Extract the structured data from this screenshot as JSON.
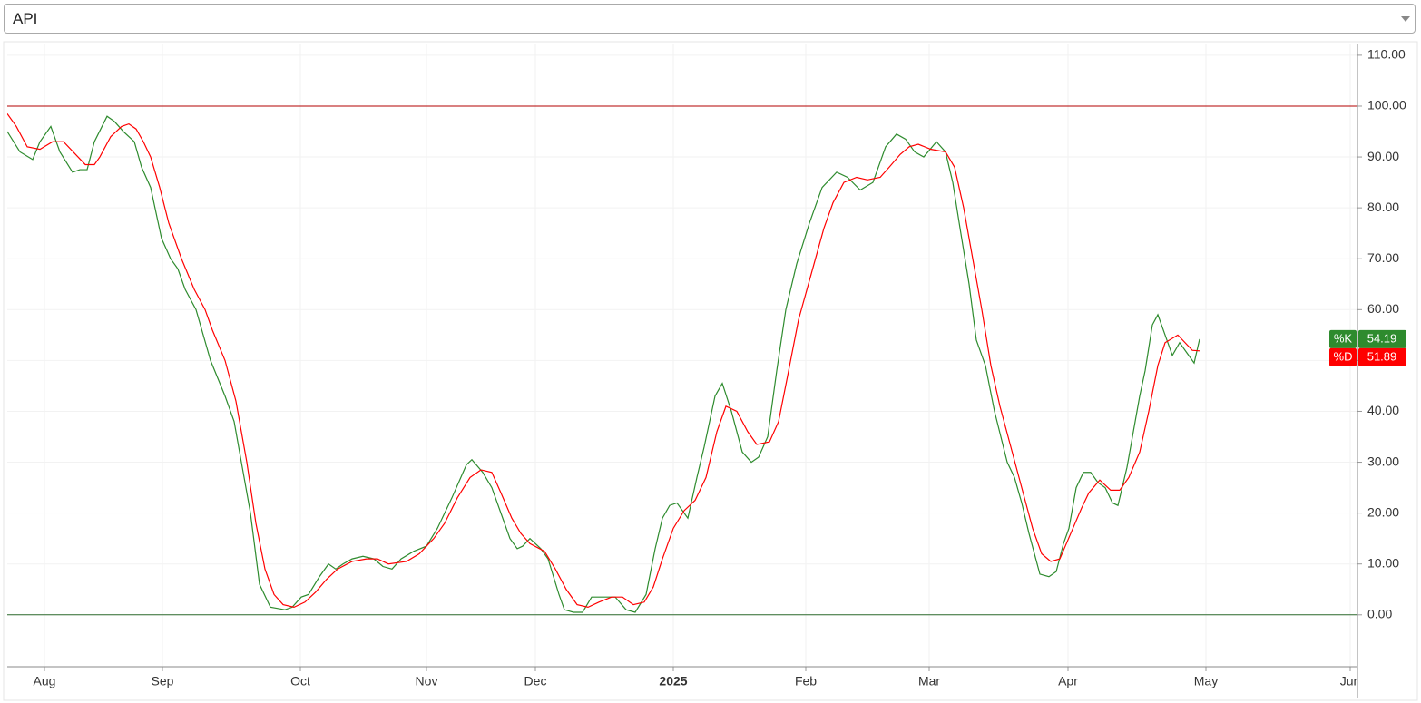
{
  "select": {
    "value": "API"
  },
  "chart_data": {
    "type": "line",
    "xlim": [
      0,
      744
    ],
    "ylim": [
      -10.2,
      112.3
    ],
    "xticks": [
      {
        "value": 20.5,
        "label": "Aug"
      },
      {
        "value": 85.5,
        "label": "Sep"
      },
      {
        "value": 161.5,
        "label": "Oct"
      },
      {
        "value": 231,
        "label": "Nov"
      },
      {
        "value": 291,
        "label": "Dec"
      },
      {
        "value": 367,
        "label": "2025",
        "bold": true
      },
      {
        "value": 440,
        "label": "Feb"
      },
      {
        "value": 508,
        "label": "Mar"
      },
      {
        "value": 584.5,
        "label": "Apr"
      },
      {
        "value": 660.5,
        "label": "May"
      },
      {
        "value": 740,
        "label": "Jun"
      }
    ],
    "yticks": [
      {
        "value": 0,
        "label": "0.00"
      },
      {
        "value": 10,
        "label": "10.00"
      },
      {
        "value": 20,
        "label": "20.00"
      },
      {
        "value": 30,
        "label": "30.00"
      },
      {
        "value": 40,
        "label": "40.00"
      },
      {
        "value": 50,
        "label": "50.00"
      },
      {
        "value": 60,
        "label": "60.00"
      },
      {
        "value": 70,
        "label": "70.00"
      },
      {
        "value": 80,
        "label": "80.00"
      },
      {
        "value": 90,
        "label": "90.00"
      },
      {
        "value": 100,
        "label": "100.00"
      },
      {
        "value": 110,
        "label": "110.00"
      }
    ],
    "grid": true,
    "levels": [
      {
        "value": 100,
        "color": "#b30000"
      },
      {
        "value": 0,
        "color": "#2e6b2e"
      }
    ],
    "series": [
      {
        "name": "%K",
        "color": "#2e8b2e",
        "x": [
          0,
          7,
          14,
          18,
          24,
          29,
          36,
          40,
          44,
          48,
          55,
          59,
          64,
          70,
          74,
          79,
          85,
          90,
          94,
          98,
          104,
          112,
          120,
          125,
          129,
          134,
          139,
          145,
          153,
          157,
          162,
          166,
          172,
          177,
          181,
          185,
          190,
          196,
          202,
          207,
          212,
          217,
          224,
          231,
          237,
          245,
          253,
          256,
          262,
          267,
          272,
          277,
          281,
          284,
          288,
          294,
          298,
          304,
          307,
          312,
          317,
          322,
          328,
          335,
          341,
          346,
          352,
          357,
          361,
          365,
          369,
          373,
          375,
          380,
          384,
          390,
          394,
          399,
          405,
          410,
          414,
          419,
          424,
          429,
          435,
          442,
          449,
          457,
          463,
          470,
          477,
          484,
          490,
          495,
          500,
          505,
          512,
          517,
          521,
          525,
          530,
          534,
          539,
          544,
          551,
          555,
          559,
          563,
          569,
          574,
          578,
          582,
          585,
          589,
          593,
          597,
          601,
          605,
          609,
          612,
          617,
          624,
          627,
          631,
          634,
          638,
          642,
          646,
          650,
          654,
          657
        ],
        "values": [
          95,
          91,
          89.5,
          93,
          96,
          91,
          87,
          87.5,
          87.5,
          93,
          98,
          97,
          95,
          93,
          88,
          84,
          74,
          70,
          68,
          64,
          60,
          50,
          43,
          38,
          30,
          20,
          6,
          1.5,
          1,
          1.5,
          3.5,
          4,
          7.5,
          10,
          9,
          10,
          11,
          11.5,
          11,
          9.5,
          9,
          11,
          12.5,
          13.5,
          17,
          23,
          29.5,
          30.5,
          28,
          25,
          20,
          15,
          13,
          13.5,
          15,
          13,
          11,
          4,
          1,
          0.5,
          0.5,
          3.5,
          3.5,
          3.5,
          1,
          0.5,
          4,
          13,
          19,
          21.5,
          22,
          20,
          19,
          27,
          33,
          43,
          45.5,
          40,
          32,
          30,
          31,
          35,
          48,
          60,
          69,
          77,
          84,
          87,
          86,
          83.5,
          85,
          92,
          94.5,
          93.5,
          91,
          90,
          93,
          91,
          85,
          76,
          65,
          54,
          49,
          40,
          30,
          27,
          22,
          16,
          8,
          7.5,
          8.5,
          14,
          17,
          25,
          28,
          28,
          26,
          25,
          22,
          21.5,
          29,
          43,
          48,
          57,
          59,
          55,
          51,
          53.5,
          51.5,
          49.5,
          54.19
        ]
      },
      {
        "name": "%D",
        "color": "#ff0000",
        "x": [
          0,
          5,
          11,
          18,
          25,
          31,
          39,
          43,
          48,
          51,
          57,
          63,
          67,
          71,
          75,
          79,
          84,
          89,
          96,
          103,
          109,
          113,
          120,
          126,
          132,
          137,
          142,
          147,
          152,
          158,
          164,
          170,
          176,
          182,
          190,
          198,
          204,
          210,
          220,
          227,
          235,
          241,
          248,
          255,
          261,
          267,
          272,
          278,
          283,
          288,
          296,
          302,
          308,
          314,
          320,
          326,
          333,
          339,
          345,
          351,
          356,
          361,
          367,
          373,
          379,
          385,
          391,
          396,
          402,
          408,
          413,
          420,
          425,
          430,
          436,
          443,
          450,
          455,
          461,
          468,
          474,
          481,
          486,
          492,
          497,
          502,
          509,
          517,
          522,
          527,
          532,
          537,
          542,
          547,
          553,
          559,
          565,
          570,
          575,
          580,
          586,
          592,
          596,
          602,
          608,
          613,
          618,
          624,
          629,
          634,
          638,
          645,
          649,
          653,
          657
        ],
        "values": [
          98.5,
          96,
          92,
          91.5,
          93,
          93,
          90,
          88.5,
          88.5,
          90,
          94,
          96,
          96.5,
          95.5,
          93,
          90,
          84,
          77,
          70,
          64,
          60,
          56,
          50,
          42,
          30,
          18,
          9,
          4,
          2,
          1.5,
          2.5,
          4.5,
          7,
          9,
          10.5,
          11,
          11,
          10,
          10.5,
          12,
          15,
          18,
          23,
          27,
          28.5,
          28,
          24,
          19,
          16,
          14,
          12.5,
          9,
          5,
          2,
          1.5,
          2.5,
          3.5,
          3.5,
          2,
          2.5,
          5.5,
          11,
          17,
          20.5,
          22.5,
          27,
          36,
          41,
          40,
          36,
          33.5,
          34,
          38,
          47,
          58,
          67,
          76,
          81,
          85,
          86,
          85.5,
          86,
          88,
          90.5,
          92,
          92.5,
          91.5,
          91,
          88,
          80,
          70,
          60,
          49,
          41,
          33,
          25,
          17,
          12,
          10.5,
          11,
          16,
          21,
          24,
          26.5,
          24.5,
          24.5,
          27,
          32,
          40,
          49,
          53.5,
          55,
          53.5,
          52,
          51.89
        ]
      }
    ]
  }
}
